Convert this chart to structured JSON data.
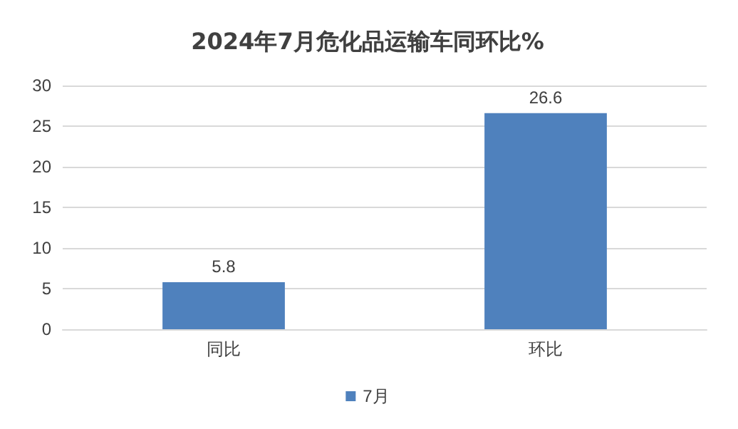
{
  "chart_data": {
    "type": "bar",
    "title": "2024年7月危化品运输车同环比%",
    "categories": [
      "同比",
      "环比"
    ],
    "series": [
      {
        "name": "7月",
        "color": "#4f81bd",
        "values": [
          5.8,
          26.6
        ]
      }
    ],
    "ylim": [
      0,
      30
    ],
    "yticks": [
      0,
      5,
      10,
      15,
      20,
      25,
      30
    ],
    "grid": "y",
    "legend": "bottom",
    "data_labels": true
  }
}
